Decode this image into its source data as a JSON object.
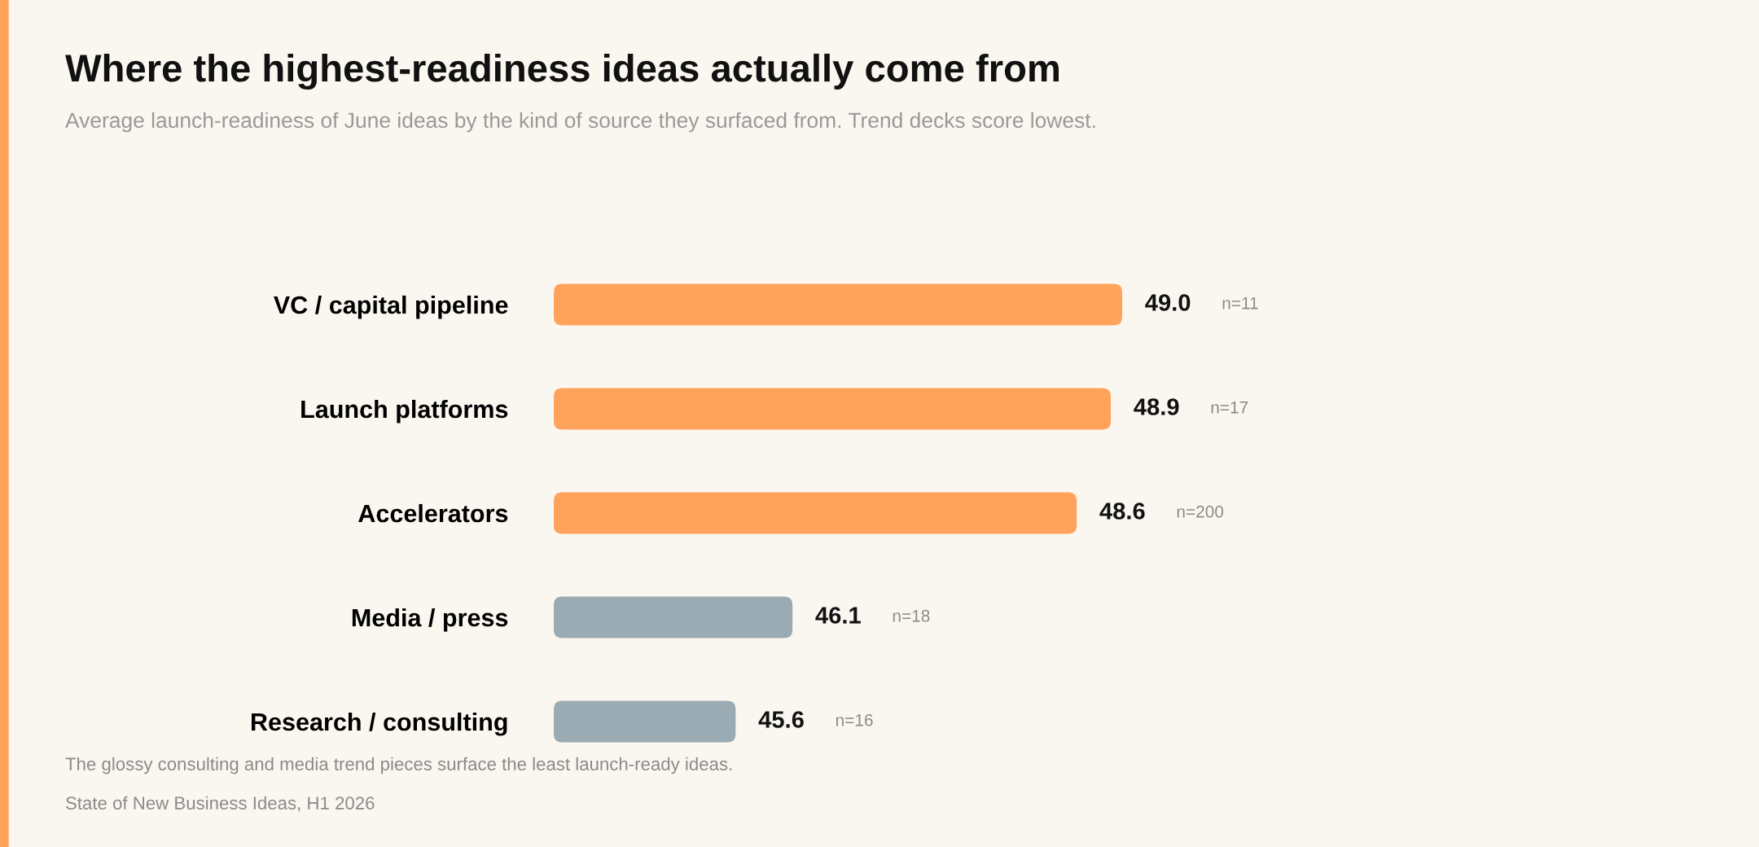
{
  "chart_data": {
    "type": "bar",
    "orientation": "horizontal",
    "title": "Where the highest-readiness ideas actually come from",
    "subtitle": "Average launch-readiness of June ideas by the kind of source they surfaced from. Trend decks score lowest.",
    "categories": [
      "VC / capital pipeline",
      "Launch platforms",
      "Accelerators",
      "Media / press",
      "Research / consulting"
    ],
    "values": [
      49.0,
      48.9,
      48.6,
      46.1,
      45.6
    ],
    "colors": [
      "#ffa35c",
      "#ffa35c",
      "#ffa35c",
      "#9aabb3",
      "#9aabb3"
    ],
    "value_labels": [
      "49.0",
      "48.9",
      "48.6",
      "46.1",
      "45.6"
    ],
    "xlim": [
      44,
      49.0
    ],
    "tick_labels": "y",
    "grid": false,
    "legend": false,
    "annotations": [
      "n=11",
      "n=17",
      "n=200",
      "n=18",
      "n=16",
      "The glossy consulting and media trend pieces surface the least launch-ready ideas.",
      "State of New Business Ideas, H1 2026"
    ]
  }
}
